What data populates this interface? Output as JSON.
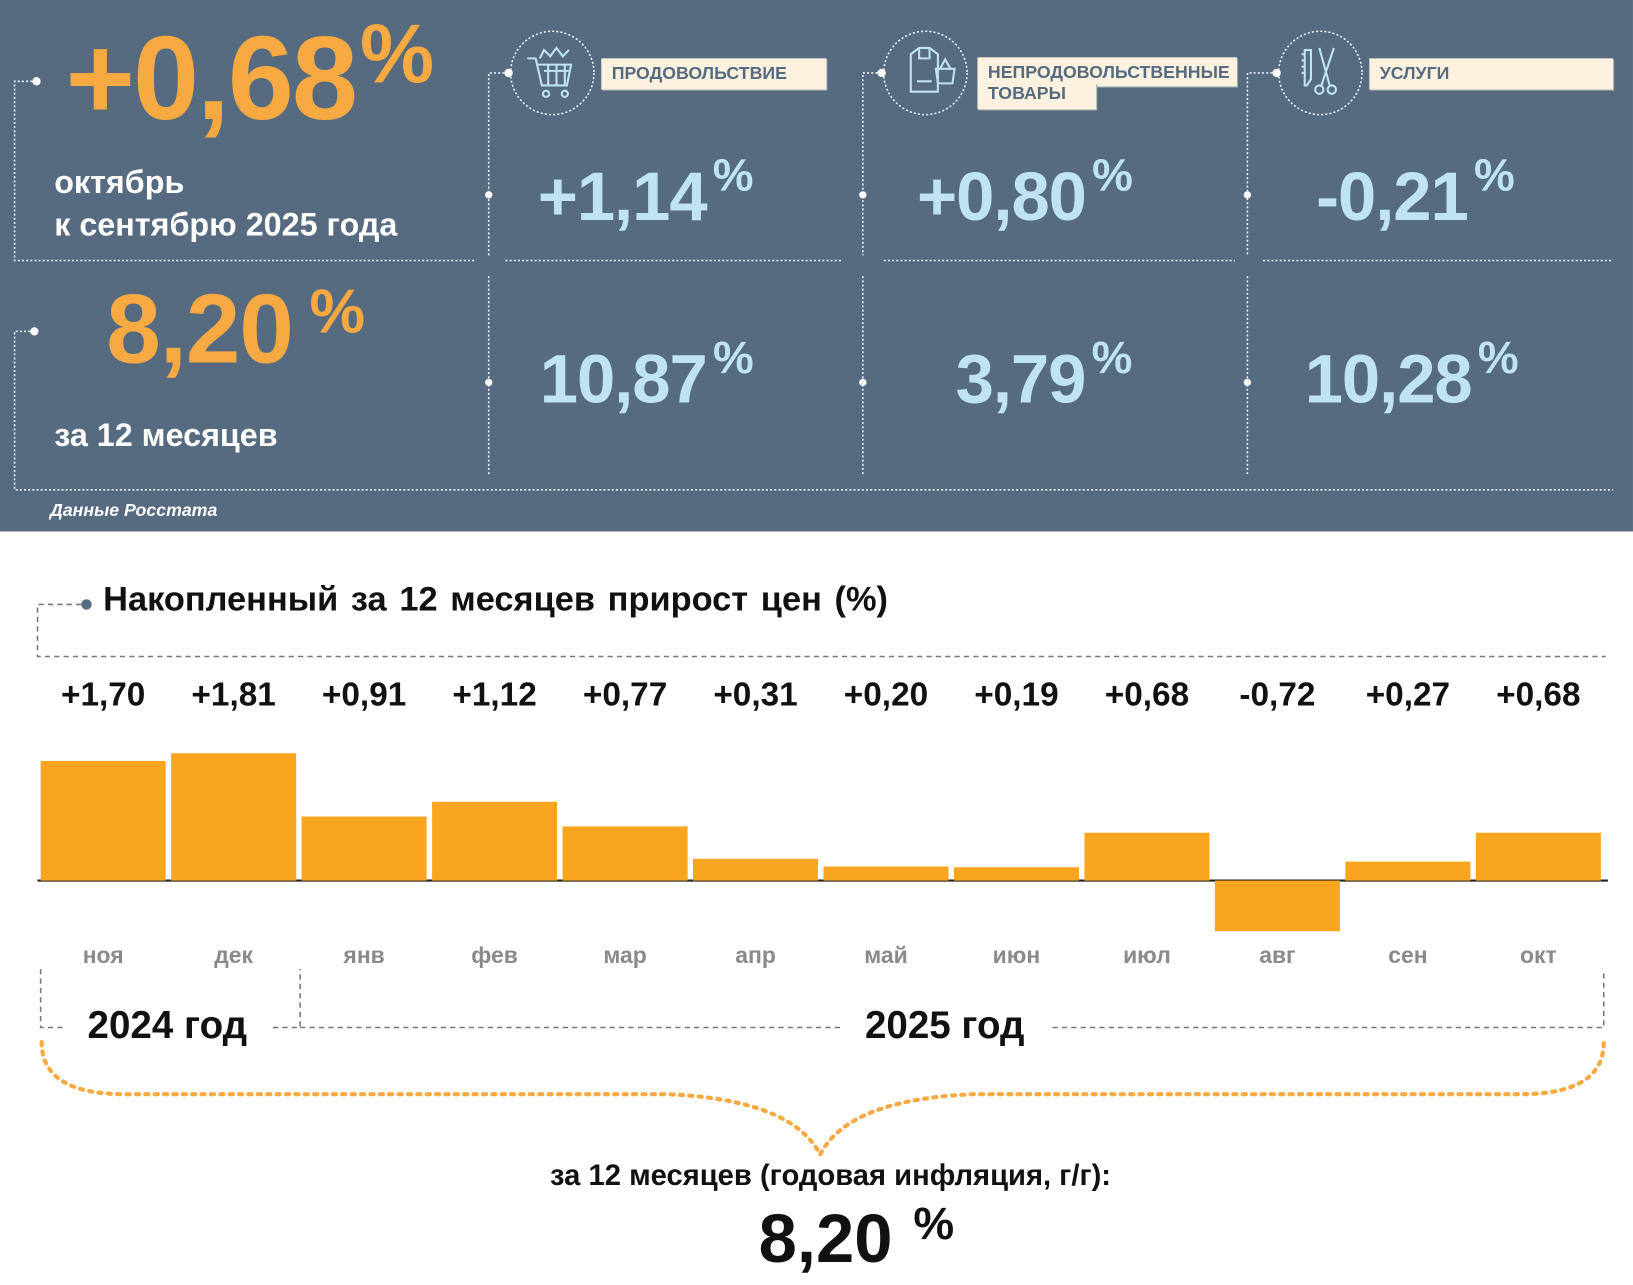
{
  "summary": {
    "monthly": {
      "value": "+0,68",
      "pct": "%",
      "line1": "октябрь",
      "line2": "к сентябрю 2025 года"
    },
    "annual": {
      "value": "8,20",
      "pct": "%",
      "label": "за 12 месяцев"
    },
    "source": "Данные Росстата"
  },
  "categories": [
    {
      "icon": "shopping-cart-icon",
      "label": "ПРОДОВОЛЬСТВИЕ",
      "label2": "",
      "monthly": "+1,14",
      "annual": "10,87",
      "pct": "%"
    },
    {
      "icon": "clothing-bag-icon",
      "label": "НЕПРОДОВОЛЬСТВЕННЫЕ",
      "label2": "ТОВАРЫ",
      "monthly": "+0,80",
      "annual": "3,79",
      "pct": "%"
    },
    {
      "icon": "comb-scissors-icon",
      "label": "УСЛУГИ",
      "label2": "",
      "monthly": "-0,21",
      "annual": "10,28",
      "pct": "%"
    }
  ],
  "colors": {
    "panel": "#566b80",
    "accent": "#f7a942",
    "bar": "#f9a51f",
    "value_blue": "#bfe3f3"
  },
  "chart_data": {
    "type": "bar",
    "title": "Накопленный за 12 месяцев прирост цен (%)",
    "categories": [
      "ноя",
      "дек",
      "янв",
      "фев",
      "мар",
      "апр",
      "май",
      "июн",
      "июл",
      "авг",
      "сен",
      "окт"
    ],
    "values": [
      1.7,
      1.81,
      0.91,
      1.12,
      0.77,
      0.31,
      0.2,
      0.19,
      0.68,
      -0.72,
      0.27,
      0.68
    ],
    "value_labels": [
      "+1,70",
      "+1,81",
      "+0,91",
      "+1,12",
      "+0,77",
      "+0,31",
      "+0,20",
      "+0,19",
      "+0,68",
      "-0,72",
      "+0,27",
      "+0,68"
    ],
    "year_labels": [
      "2024 год",
      "2025 год"
    ],
    "ylim": [
      -0.72,
      1.81
    ],
    "xlabel": "",
    "ylabel": "",
    "total_label": "за 12 месяцев (годовая инфляция, г/г):",
    "total_value": "8,20",
    "total_pct": "%"
  }
}
